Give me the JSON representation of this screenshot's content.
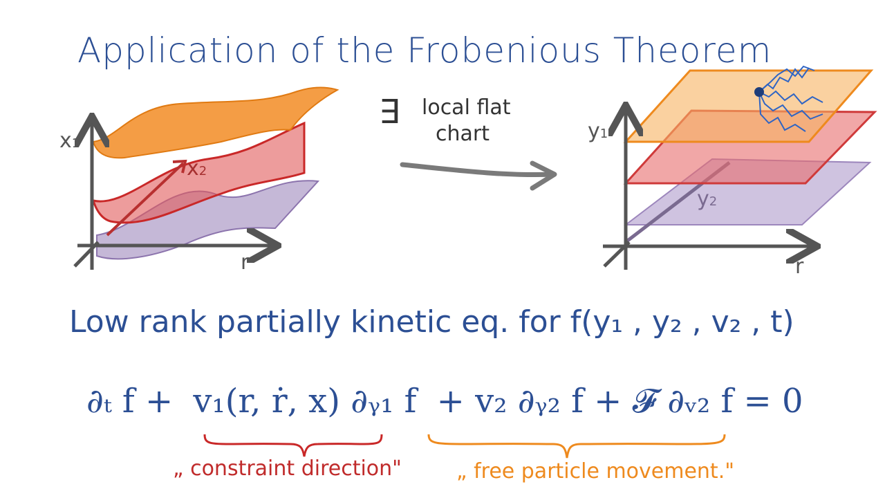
{
  "title": "Application of the Frobenious Theorem",
  "arrow_note": {
    "exists_symbol": "∃",
    "line1": "local  flat",
    "line2": "chart"
  },
  "left_plot": {
    "vertical_axis": "x",
    "vertical_axis_sub": "1",
    "depth_axis": "x",
    "depth_axis_sub": "2",
    "horizontal_axis": "r"
  },
  "right_plot": {
    "vertical_axis": "y",
    "vertical_axis_sub": "1",
    "depth_axis": "y",
    "depth_axis_sub": "2",
    "horizontal_axis": "r"
  },
  "equation_title": {
    "text": "Low rank  partially  kinetic  eq.    for  f(y₁ , y₂ , v₂ , t)"
  },
  "pde": {
    "term1": "∂ₜ f  +",
    "term2": "v₁(r, ṙ, x) ∂ᵧ₁ f",
    "term3": "+  v₂ ∂ᵧ₂ f  +  𝓕 ∂ᵥ₂ f  = 0"
  },
  "annotations": {
    "constraint": "„ constraint direction\"",
    "free": "„ free  particle  movement.\""
  },
  "colors": {
    "ink_blue": "#2c4f94",
    "orange": "#f08a1c",
    "red": "#d93a3a",
    "purple": "#9a86b6",
    "gray": "#666666"
  }
}
